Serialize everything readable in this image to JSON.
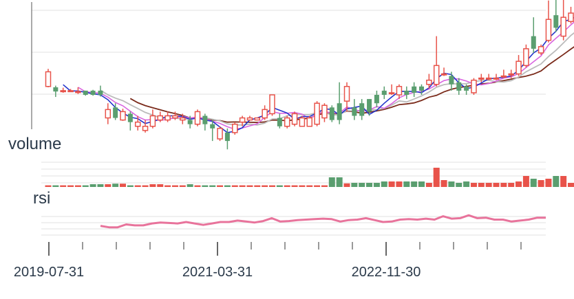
{
  "colors": {
    "up": "#e8534a",
    "down": "#5a9e6f",
    "ma_fast": "#2233cc",
    "ma_mid": "#d966e0",
    "ma_slow": "#bbbbbb",
    "ma_long": "#7a2a1a",
    "rsi": "#e8739b",
    "grid": "#e2e2e2"
  },
  "chart_data": {
    "type": "candlestick",
    "panels": [
      {
        "name": "price",
        "label": ""
      },
      {
        "name": "volume",
        "label": "volume"
      },
      {
        "name": "rsi",
        "label": "rsi"
      }
    ],
    "x_tick_labels": [
      "2019-07-31",
      "2021-03-31",
      "2022-11-30"
    ],
    "candles": [
      {
        "o": 0.2,
        "c": 0.55,
        "h": 0.62,
        "l": 0.18,
        "v": 0.06
      },
      {
        "o": 0.18,
        "c": 0.08,
        "h": 0.22,
        "l": -0.05,
        "v": 0.06
      },
      {
        "o": 0.1,
        "c": 0.1,
        "h": 0.17,
        "l": 0.05,
        "v": 0.06
      },
      {
        "o": 0.1,
        "c": 0.1,
        "h": 0.14,
        "l": 0.08,
        "v": 0.06
      },
      {
        "o": 0.08,
        "c": 0.08,
        "h": 0.18,
        "l": 0.02,
        "v": 0.06
      },
      {
        "o": 0.1,
        "c": 0.0,
        "h": 0.1,
        "l": -0.02,
        "v": 0.06
      },
      {
        "o": 0.1,
        "c": 0.0,
        "h": 0.12,
        "l": -0.02,
        "v": 0.1
      },
      {
        "o": 0.1,
        "c": 0.0,
        "h": 0.22,
        "l": -0.04,
        "v": 0.1
      },
      {
        "o": -0.55,
        "c": -0.35,
        "h": -0.2,
        "l": -0.7,
        "v": 0.1
      },
      {
        "o": -0.3,
        "c": -0.55,
        "h": -0.2,
        "l": -0.6,
        "v": 0.12
      },
      {
        "o": -0.6,
        "c": -0.4,
        "h": -0.33,
        "l": -0.62,
        "v": 0.12
      },
      {
        "o": -0.45,
        "c": -0.65,
        "h": -0.4,
        "l": -0.85,
        "v": 0.06
      },
      {
        "o": -0.75,
        "c": -0.65,
        "h": -0.5,
        "l": -0.85,
        "v": 0.06
      },
      {
        "o": -0.85,
        "c": -0.75,
        "h": -0.6,
        "l": -0.9,
        "v": 0.06
      },
      {
        "o": -0.75,
        "c": -0.5,
        "h": -0.35,
        "l": -0.8,
        "v": 0.1
      },
      {
        "o": -0.6,
        "c": -0.5,
        "h": -0.4,
        "l": -0.65,
        "v": 0.1
      },
      {
        "o": -0.6,
        "c": -0.5,
        "h": -0.4,
        "l": -0.65,
        "v": 0.06
      },
      {
        "o": -0.55,
        "c": -0.5,
        "h": -0.4,
        "l": -0.6,
        "v": 0.06
      },
      {
        "o": -0.6,
        "c": -0.55,
        "h": -0.45,
        "l": -0.7,
        "v": 0.06
      },
      {
        "o": -0.6,
        "c": -0.7,
        "h": -0.5,
        "l": -0.8,
        "v": 0.1
      },
      {
        "o": -0.7,
        "c": -0.4,
        "h": -0.35,
        "l": -0.75,
        "v": 0.06
      },
      {
        "o": -0.5,
        "c": -0.7,
        "h": -0.45,
        "l": -0.85,
        "v": 0.06
      },
      {
        "o": -0.7,
        "c": -0.8,
        "h": -0.6,
        "l": -1.1,
        "v": 0.06
      },
      {
        "o": -1.05,
        "c": -0.8,
        "h": -0.75,
        "l": -1.1,
        "v": 0.06
      },
      {
        "o": -0.9,
        "c": -1.1,
        "h": -0.8,
        "l": -1.3,
        "v": 0.06
      },
      {
        "o": -0.9,
        "c": -0.7,
        "h": -0.65,
        "l": -0.95,
        "v": 0.06
      },
      {
        "o": -0.65,
        "c": -0.55,
        "h": -0.5,
        "l": -0.75,
        "v": 0.06
      },
      {
        "o": -0.6,
        "c": -0.55,
        "h": -0.5,
        "l": -0.6,
        "v": 0.06
      },
      {
        "o": -0.6,
        "c": -0.55,
        "h": -0.55,
        "l": -0.6,
        "v": 0.06
      },
      {
        "o": -0.55,
        "c": -0.35,
        "h": -0.25,
        "l": -0.6,
        "v": 0.06
      },
      {
        "o": -0.45,
        "c": 0.0,
        "h": 0.0,
        "l": -0.5,
        "v": 0.06
      },
      {
        "o": -0.55,
        "c": -0.75,
        "h": -0.45,
        "l": -0.8,
        "v": 0.06
      },
      {
        "o": -0.75,
        "c": -0.55,
        "h": -0.5,
        "l": -0.8,
        "v": 0.06
      },
      {
        "o": -0.7,
        "c": -0.45,
        "h": -0.4,
        "l": -0.75,
        "v": 0.06
      },
      {
        "o": -0.75,
        "c": -0.55,
        "h": -0.5,
        "l": -0.75,
        "v": 0.06
      },
      {
        "o": -0.75,
        "c": -0.55,
        "h": -0.5,
        "l": -0.75,
        "v": 0.06
      },
      {
        "o": -0.7,
        "c": -0.2,
        "h": -0.15,
        "l": -0.75,
        "v": 0.06
      },
      {
        "o": -0.55,
        "c": -0.25,
        "h": -0.2,
        "l": -0.65,
        "v": 0.06
      },
      {
        "o": -0.3,
        "c": -0.6,
        "h": -0.25,
        "l": -0.65,
        "v": 0.35
      },
      {
        "o": -0.2,
        "c": -0.6,
        "h": 0.3,
        "l": -0.7,
        "v": 0.35
      },
      {
        "o": -0.15,
        "c": 0.2,
        "h": 0.3,
        "l": -0.4,
        "v": 0.13
      },
      {
        "o": -0.3,
        "c": -0.5,
        "h": -0.1,
        "l": -0.6,
        "v": 0.15
      },
      {
        "o": -0.2,
        "c": -0.5,
        "h": -0.1,
        "l": -0.6,
        "v": 0.15
      },
      {
        "o": -0.1,
        "c": -0.4,
        "h": -0.1,
        "l": -0.5,
        "v": 0.15
      },
      {
        "o": 0.0,
        "c": -0.2,
        "h": 0.1,
        "l": -0.3,
        "v": 0.15
      },
      {
        "o": 0.1,
        "c": 0.0,
        "h": 0.2,
        "l": -0.1,
        "v": 0.2
      },
      {
        "o": 0.05,
        "c": 0.05,
        "h": 0.25,
        "l": 0.0,
        "v": 0.2
      },
      {
        "o": 0.0,
        "c": 0.2,
        "h": 0.25,
        "l": -0.1,
        "v": 0.2
      },
      {
        "o": 0.1,
        "c": 0.0,
        "h": 0.2,
        "l": -0.1,
        "v": 0.2
      },
      {
        "o": 0.2,
        "c": 0.05,
        "h": 0.3,
        "l": -0.05,
        "v": 0.2
      },
      {
        "o": 0.2,
        "c": 0.1,
        "h": 0.25,
        "l": 0.0,
        "v": 0.2
      },
      {
        "o": 0.25,
        "c": 0.35,
        "h": 0.5,
        "l": 0.15,
        "v": 0.15
      },
      {
        "o": 0.25,
        "c": 0.7,
        "h": 1.4,
        "l": 0.2,
        "v": 0.7
      },
      {
        "o": 0.5,
        "c": 0.5,
        "h": 0.65,
        "l": 0.45,
        "v": 0.25
      },
      {
        "o": 0.45,
        "c": 0.25,
        "h": 0.55,
        "l": 0.1,
        "v": 0.2
      },
      {
        "o": 0.3,
        "c": 0.1,
        "h": 0.4,
        "l": 0.0,
        "v": 0.15
      },
      {
        "o": 0.2,
        "c": 0.1,
        "h": 0.25,
        "l": 0.0,
        "v": 0.2
      },
      {
        "o": 0.05,
        "c": 0.35,
        "h": 0.4,
        "l": 0.0,
        "v": 0.15
      },
      {
        "o": 0.4,
        "c": 0.4,
        "h": 0.5,
        "l": 0.3,
        "v": 0.15
      },
      {
        "o": 0.4,
        "c": 0.4,
        "h": 0.5,
        "l": 0.35,
        "v": 0.15
      },
      {
        "o": 0.4,
        "c": 0.4,
        "h": 0.5,
        "l": 0.35,
        "v": 0.15
      },
      {
        "o": 0.45,
        "c": 0.45,
        "h": 0.6,
        "l": 0.4,
        "v": 0.15
      },
      {
        "o": 0.5,
        "c": 0.5,
        "h": 0.6,
        "l": 0.4,
        "v": 0.15
      },
      {
        "o": 0.5,
        "c": 0.8,
        "h": 0.95,
        "l": 0.45,
        "v": 0.2
      },
      {
        "o": 0.7,
        "c": 1.1,
        "h": 1.2,
        "l": 0.65,
        "v": 0.4
      },
      {
        "o": 1.4,
        "c": 1.1,
        "h": 1.85,
        "l": 1.0,
        "v": 0.3
      },
      {
        "o": 1.0,
        "c": 1.15,
        "h": 1.2,
        "l": 0.95,
        "v": 0.25
      },
      {
        "o": 1.3,
        "c": 1.8,
        "h": 2.25,
        "l": 1.25,
        "v": 0.3
      },
      {
        "o": 1.9,
        "c": 1.6,
        "h": 2.5,
        "l": 1.5,
        "v": 0.4
      },
      {
        "o": 1.4,
        "c": 1.85,
        "h": 2.5,
        "l": 1.3,
        "v": 0.4
      },
      {
        "o": 1.75,
        "c": 1.95,
        "h": 2.1,
        "l": 1.7,
        "v": 0.15
      },
      {
        "o": 1.95,
        "c": 1.9,
        "h": 2.0,
        "l": 1.85,
        "v": 0.2
      },
      {
        "o": 1.8,
        "c": 1.7,
        "h": 1.95,
        "l": 1.5,
        "v": 0.25
      },
      {
        "o": 1.9,
        "c": 1.6,
        "h": 2.0,
        "l": 1.3,
        "v": 0.5
      },
      {
        "o": 1.75,
        "c": 1.6,
        "h": 1.95,
        "l": 1.35,
        "v": 0.5
      },
      {
        "o": 1.95,
        "c": 2.4,
        "h": 2.45,
        "l": 1.85,
        "v": 0.45
      },
      {
        "o": 2.05,
        "c": 2.35,
        "h": 2.45,
        "l": 2.0,
        "v": 0.35
      },
      {
        "o": 2.4,
        "c": 2.5,
        "h": 2.75,
        "l": 2.3,
        "v": 0.6
      },
      {
        "o": 2.45,
        "c": 2.35,
        "h": 2.6,
        "l": 2.25,
        "v": 0.35
      }
    ],
    "rsi_values": [
      0.1,
      -0.05,
      -0.05,
      0.25,
      0.15,
      0.15,
      0.35,
      0.45,
      0.4,
      0.35,
      0.5,
      0.35,
      0.2,
      0.35,
      0.5,
      0.5,
      0.65,
      0.55,
      0.45,
      0.6,
      0.9,
      0.55,
      0.6,
      0.7,
      0.75,
      0.8,
      0.85,
      0.8,
      0.55,
      0.7,
      0.75,
      0.9,
      0.7,
      0.5,
      0.55,
      0.75,
      0.8,
      0.75,
      0.85,
      0.75,
      1.1,
      0.85,
      0.9,
      1.2,
      0.9,
      0.95,
      0.75,
      0.75,
      0.55,
      0.65,
      0.75,
      0.95,
      0.95
    ]
  }
}
